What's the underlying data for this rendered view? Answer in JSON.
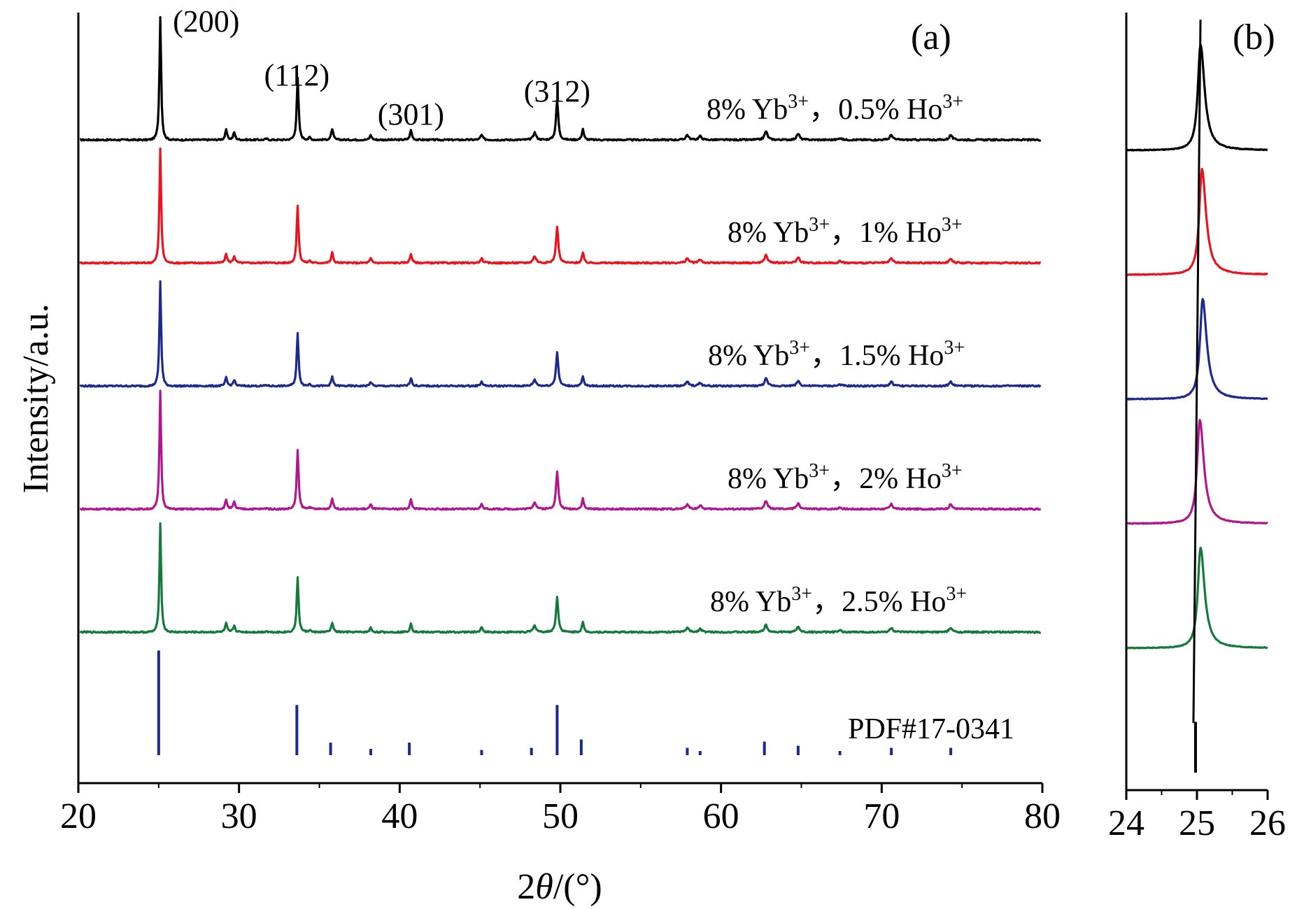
{
  "chart_data": [
    {
      "type": "line",
      "panel_label": "(a)",
      "xlabel": {
        "prefix": "2",
        "var": "θ",
        "suffix": "/(°)"
      },
      "ylabel": "Intensity/a.u.",
      "xlim": [
        20,
        80
      ],
      "xticks": [
        20,
        30,
        40,
        50,
        60,
        70,
        80
      ],
      "grid": false,
      "peak_annotations": [
        {
          "x": 25.1,
          "label": "(200)"
        },
        {
          "x": 33.6,
          "label": "(112)"
        },
        {
          "x": 40.7,
          "label": "(301)"
        },
        {
          "x": 49.8,
          "label": "(312)"
        }
      ],
      "series": [
        {
          "name": "8% Yb3+, 0.5% Ho3+",
          "label": {
            "a": "8% Yb",
            "a_sup": "3+",
            "b": "，0.5% Ho",
            "b_sup": "3+"
          },
          "color": "#000000",
          "offset": 5.0,
          "peak_scale": 1.0
        },
        {
          "name": "8% Yb3+, 1% Ho3+",
          "label": {
            "a": "8% Yb",
            "a_sup": "3+",
            "b": "，1% Ho",
            "b_sup": "3+"
          },
          "color": "#e8141e",
          "offset": 4.0,
          "peak_scale": 0.93
        },
        {
          "name": "8% Yb3+, 1.5% Ho3+",
          "label": {
            "a": "8% Yb",
            "a_sup": "3+",
            "b": "，1.5% Ho",
            "b_sup": "3+"
          },
          "color": "#1b2a8c",
          "offset": 3.0,
          "peak_scale": 0.85
        },
        {
          "name": "8% Yb3+, 2% Ho3+",
          "label": {
            "a": "8% Yb",
            "a_sup": "3+",
            "b": "，2% Ho",
            "b_sup": "3+"
          },
          "color": "#b0178f",
          "offset": 2.0,
          "peak_scale": 0.96
        },
        {
          "name": "8% Yb3+, 2.5% Ho3+",
          "label": {
            "a": "8% Yb",
            "a_sup": "3+",
            "b": "，2.5% Ho",
            "b_sup": "3+"
          },
          "color": "#137a3b",
          "offset": 1.0,
          "peak_scale": 0.88
        }
      ],
      "peaks": [
        {
          "x": 25.1,
          "h": 1.0,
          "w": 0.09
        },
        {
          "x": 29.2,
          "h": 0.08,
          "w": 0.1
        },
        {
          "x": 29.7,
          "h": 0.06,
          "w": 0.1
        },
        {
          "x": 31.7,
          "h": 0.01,
          "w": 0.1
        },
        {
          "x": 33.65,
          "h": 0.5,
          "w": 0.1
        },
        {
          "x": 34.4,
          "h": 0.02,
          "w": 0.1
        },
        {
          "x": 35.8,
          "h": 0.09,
          "w": 0.1
        },
        {
          "x": 38.2,
          "h": 0.04,
          "w": 0.1
        },
        {
          "x": 40.7,
          "h": 0.08,
          "w": 0.1
        },
        {
          "x": 45.1,
          "h": 0.04,
          "w": 0.12
        },
        {
          "x": 48.4,
          "h": 0.06,
          "w": 0.15
        },
        {
          "x": 49.8,
          "h": 0.32,
          "w": 0.12
        },
        {
          "x": 51.4,
          "h": 0.09,
          "w": 0.1
        },
        {
          "x": 57.9,
          "h": 0.04,
          "w": 0.15
        },
        {
          "x": 58.7,
          "h": 0.03,
          "w": 0.15
        },
        {
          "x": 62.8,
          "h": 0.07,
          "w": 0.15
        },
        {
          "x": 64.8,
          "h": 0.05,
          "w": 0.15
        },
        {
          "x": 67.4,
          "h": 0.015,
          "w": 0.15
        },
        {
          "x": 70.6,
          "h": 0.04,
          "w": 0.15
        },
        {
          "x": 74.3,
          "h": 0.04,
          "w": 0.15
        }
      ],
      "reference": {
        "name": "PDF#17-0341",
        "color": "#1b2a8c",
        "lines": [
          {
            "x": 25.0,
            "h": 1.0
          },
          {
            "x": 33.6,
            "h": 0.48
          },
          {
            "x": 35.7,
            "h": 0.12
          },
          {
            "x": 38.2,
            "h": 0.06
          },
          {
            "x": 40.6,
            "h": 0.12
          },
          {
            "x": 45.1,
            "h": 0.05
          },
          {
            "x": 48.2,
            "h": 0.07
          },
          {
            "x": 49.8,
            "h": 0.48
          },
          {
            "x": 51.3,
            "h": 0.15
          },
          {
            "x": 57.9,
            "h": 0.07
          },
          {
            "x": 58.7,
            "h": 0.04
          },
          {
            "x": 62.7,
            "h": 0.13
          },
          {
            "x": 64.8,
            "h": 0.09
          },
          {
            "x": 67.4,
            "h": 0.04
          },
          {
            "x": 70.6,
            "h": 0.07
          },
          {
            "x": 74.3,
            "h": 0.07
          }
        ]
      }
    },
    {
      "type": "line",
      "panel_label": "(b)",
      "xlim": [
        24,
        26
      ],
      "xticks": [
        24,
        25,
        26
      ],
      "grid": false,
      "series": [
        {
          "name": "8% Yb3+, 0.5% Ho3+",
          "color": "#000000",
          "center": 25.05,
          "offset": 5.0,
          "h": 1.0
        },
        {
          "name": "8% Yb3+, 1% Ho3+",
          "color": "#e8141e",
          "center": 25.07,
          "offset": 4.0,
          "h": 1.0
        },
        {
          "name": "8% Yb3+, 1.5% Ho3+",
          "color": "#1b2a8c",
          "center": 25.08,
          "offset": 3.0,
          "h": 0.95
        },
        {
          "name": "8% Yb3+, 2% Ho3+",
          "color": "#b0178f",
          "center": 25.04,
          "offset": 2.0,
          "h": 0.98
        },
        {
          "name": "8% Yb3+, 2.5% Ho3+",
          "color": "#137a3b",
          "center": 25.05,
          "offset": 1.0,
          "h": 0.95
        }
      ],
      "trend_line": [
        {
          "x": 24.95,
          "y": 0.4
        },
        {
          "x": 25.05,
          "y": 6.05
        }
      ],
      "reference_line": {
        "x": 24.98,
        "h": 0.48
      }
    }
  ]
}
